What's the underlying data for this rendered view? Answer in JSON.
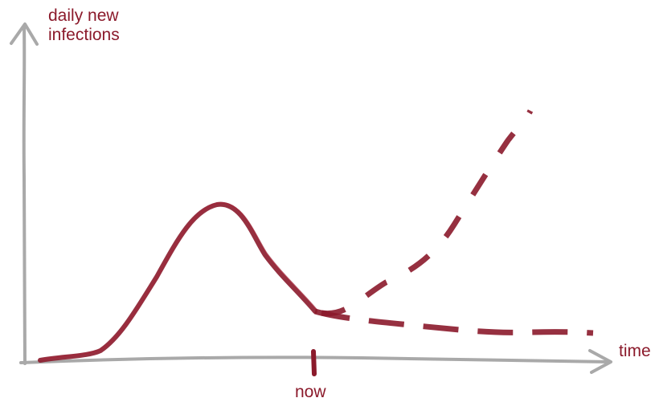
{
  "diagram": {
    "y_axis_label_line1": "daily new",
    "y_axis_label_line2": "infections",
    "x_axis_label": "time",
    "now_label": "now",
    "axis_color": "#a9a9a9",
    "curve_color": "#8b1a2b"
  }
}
